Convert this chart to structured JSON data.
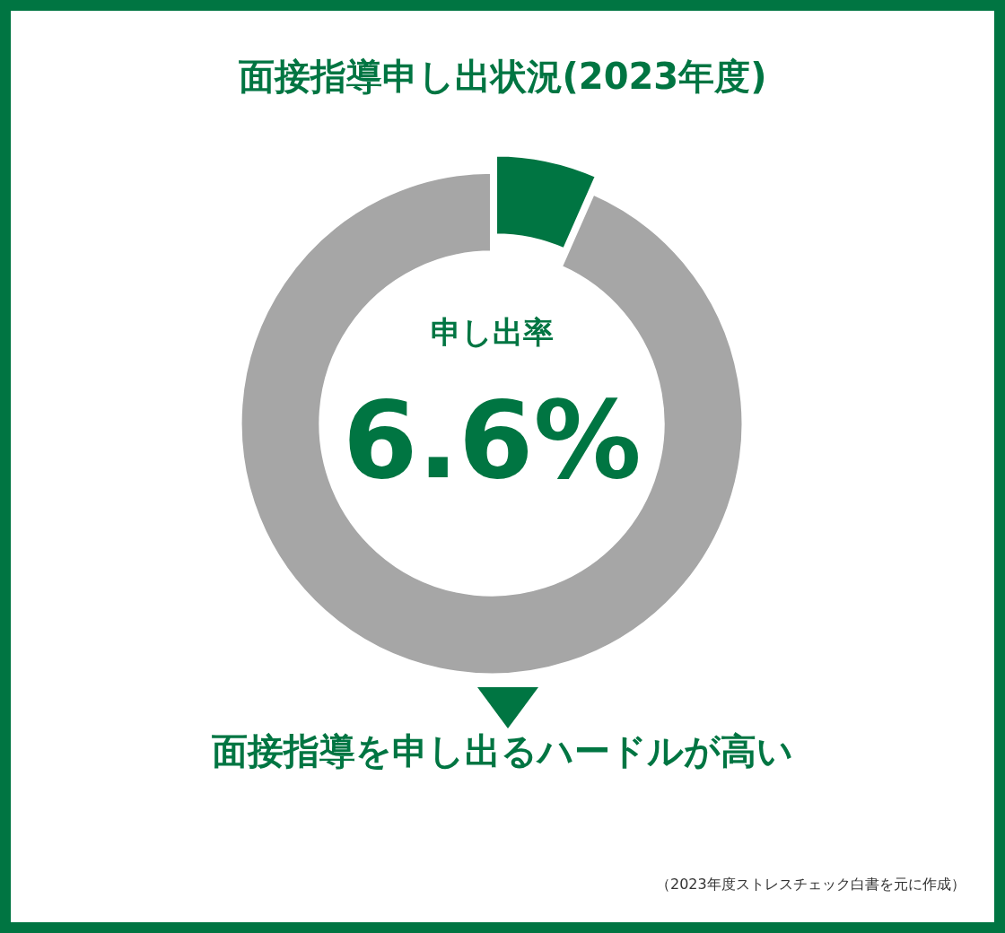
{
  "chart_data": {
    "type": "donut",
    "title": "面接指導申し出状況(2023年度)",
    "categories": [
      "申し出率",
      null
    ],
    "values": [
      6.6,
      93.4
    ],
    "colors": [
      "#007542",
      "#a6a6a6"
    ],
    "value_labels": [
      "6.6%",
      null
    ],
    "legend": false,
    "annotations": [
      "面接指導を申し出るハードルが高い",
      "（2023年度ストレスチェック白書を元に作成）"
    ]
  }
}
